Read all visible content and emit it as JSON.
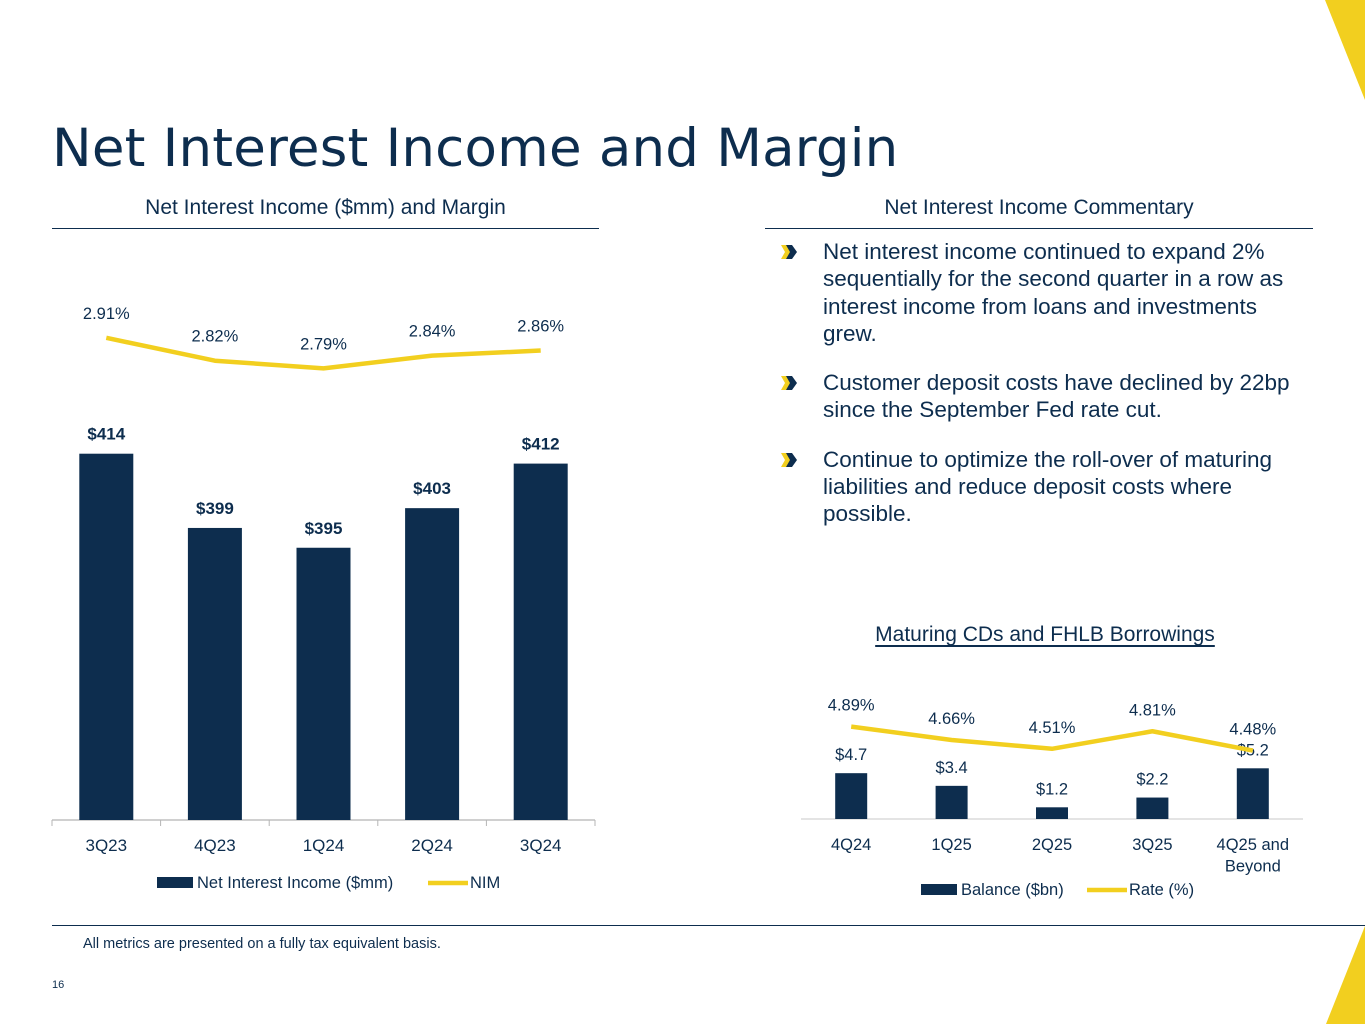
{
  "page": {
    "title": "Net Interest Income and Margin",
    "left_section_title": "Net Interest Income ($mm) and Margin",
    "right_section_title": "Net Interest Income Commentary",
    "footnote": "All metrics are presented on a fully tax equivalent basis.",
    "page_number": "16",
    "colors": {
      "navy": "#0d2d4e",
      "gold": "#f2cf1f"
    }
  },
  "commentary": {
    "bullets": [
      "Net interest income continued to expand 2% sequentially for the second quarter in a row as interest income from loans and investments grew.",
      "Customer deposit costs have declined by 22bp since the September Fed rate cut.",
      "Continue to optimize the roll-over of maturing liabilities and reduce deposit costs where possible."
    ]
  },
  "chart_data": [
    {
      "type": "bar",
      "title": "Net Interest Income ($mm) and Margin",
      "categories": [
        "3Q23",
        "4Q23",
        "1Q24",
        "2Q24",
        "3Q24"
      ],
      "series": [
        {
          "name": "Net Interest Income ($mm)",
          "type": "bar",
          "values": [
            414,
            399,
            395,
            403,
            412
          ],
          "labels": [
            "$414",
            "$399",
            "$395",
            "$403",
            "$412"
          ]
        },
        {
          "name": "NIM",
          "type": "line",
          "values": [
            2.91,
            2.82,
            2.79,
            2.84,
            2.86
          ],
          "labels": [
            "2.91%",
            "2.82%",
            "2.79%",
            "2.84%",
            "2.86%"
          ]
        }
      ],
      "ylim_bar": [
        340,
        420
      ],
      "ylim_line": [
        2.0,
        3.0
      ],
      "legend_position": "bottom"
    },
    {
      "type": "bar",
      "title": "Maturing CDs and FHLB Borrowings",
      "categories": [
        "4Q24",
        "1Q25",
        "2Q25",
        "3Q25",
        "4Q25 and Beyond"
      ],
      "series": [
        {
          "name": "Balance ($bn)",
          "type": "bar",
          "values": [
            4.7,
            3.4,
            1.2,
            2.2,
            5.2
          ],
          "labels": [
            "$4.7",
            "$3.4",
            "$1.2",
            "$2.2",
            "$5.2"
          ]
        },
        {
          "name": "Rate (%)",
          "type": "line",
          "values": [
            4.89,
            4.66,
            4.51,
            4.81,
            4.48
          ],
          "labels": [
            "4.89%",
            "4.66%",
            "4.51%",
            "4.81%",
            "4.48%"
          ]
        }
      ],
      "ylim_bar": [
        0,
        8.0
      ],
      "ylim_line": [
        0,
        5.5
      ],
      "legend_position": "bottom"
    }
  ]
}
